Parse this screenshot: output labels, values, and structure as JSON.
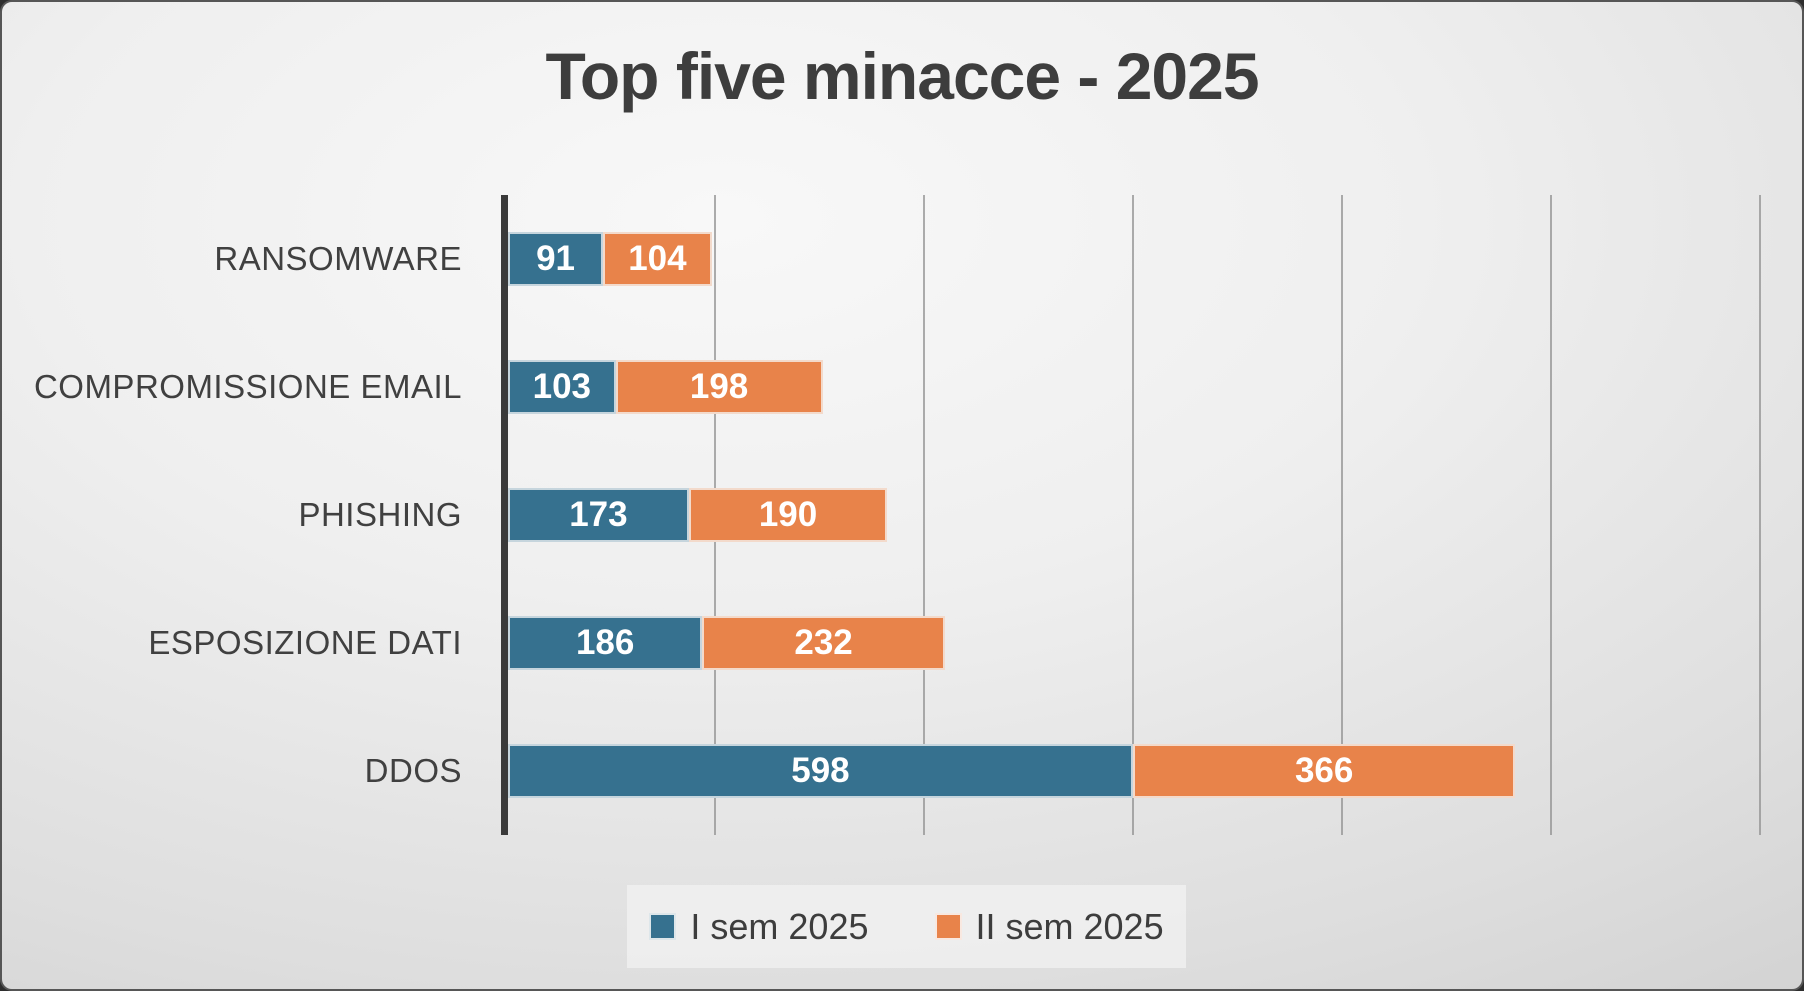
{
  "title": "Top five minacce - 2025",
  "chart_data": {
    "type": "bar",
    "orientation": "horizontal-stacked",
    "title": "Top five minacce - 2025",
    "categories": [
      "RANSOMWARE",
      "COMPROMISSIONE EMAIL",
      "PHISHING",
      "ESPOSIZIONE DATI",
      "DDOS"
    ],
    "series": [
      {
        "name": "I sem 2025",
        "color": "#36718F",
        "values": [
          91,
          103,
          173,
          186,
          598
        ]
      },
      {
        "name": "II sem 2025",
        "color": "#E8834A",
        "values": [
          104,
          198,
          190,
          232,
          366
        ]
      }
    ],
    "xlim": [
      0,
      1200
    ],
    "gridline_interval": 200,
    "grid": "vertical",
    "value_labels": "inside-white",
    "legend_position": "bottom"
  },
  "colors": {
    "title_text": "#3d3d3d",
    "category_text": "#404040",
    "axis_line": "#3a3a3a",
    "gridline": "#929292",
    "value_label_text": "#ffffff",
    "legend_background": "#f0f0f0",
    "background_light": "#f8f8f8",
    "background_dark": "#c2c2c2"
  }
}
